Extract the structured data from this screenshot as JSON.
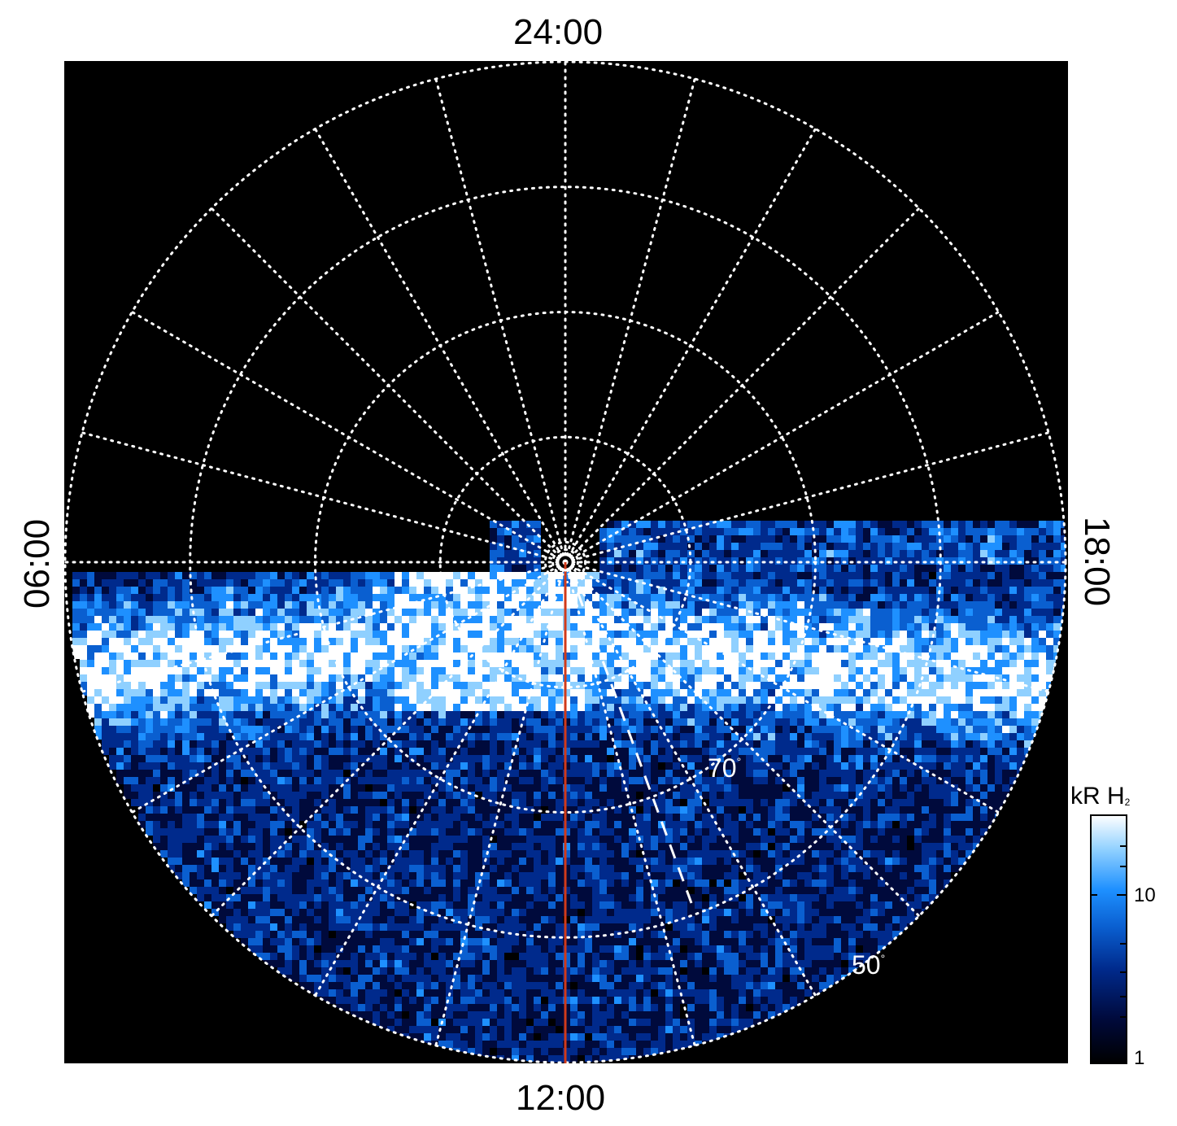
{
  "local_time_labels": {
    "top": "24:00",
    "bottom": "12:00",
    "left": "06:00",
    "right": "18:00"
  },
  "latitude_labels": {
    "lat70": "70",
    "lat50": "50",
    "degree_symbol": "°"
  },
  "colorbar": {
    "title": "kR H",
    "subscript": "2",
    "tick_10": "10",
    "tick_1": "1",
    "colors": [
      "#000000",
      "#000a3c",
      "#002a8c",
      "#0a5fd0",
      "#1e90ff",
      "#8fd0ff",
      "#ffffff"
    ]
  },
  "colors": {
    "background": "#000000",
    "grid": "#ffffff",
    "meridian_line": "#d03a1a"
  }
}
